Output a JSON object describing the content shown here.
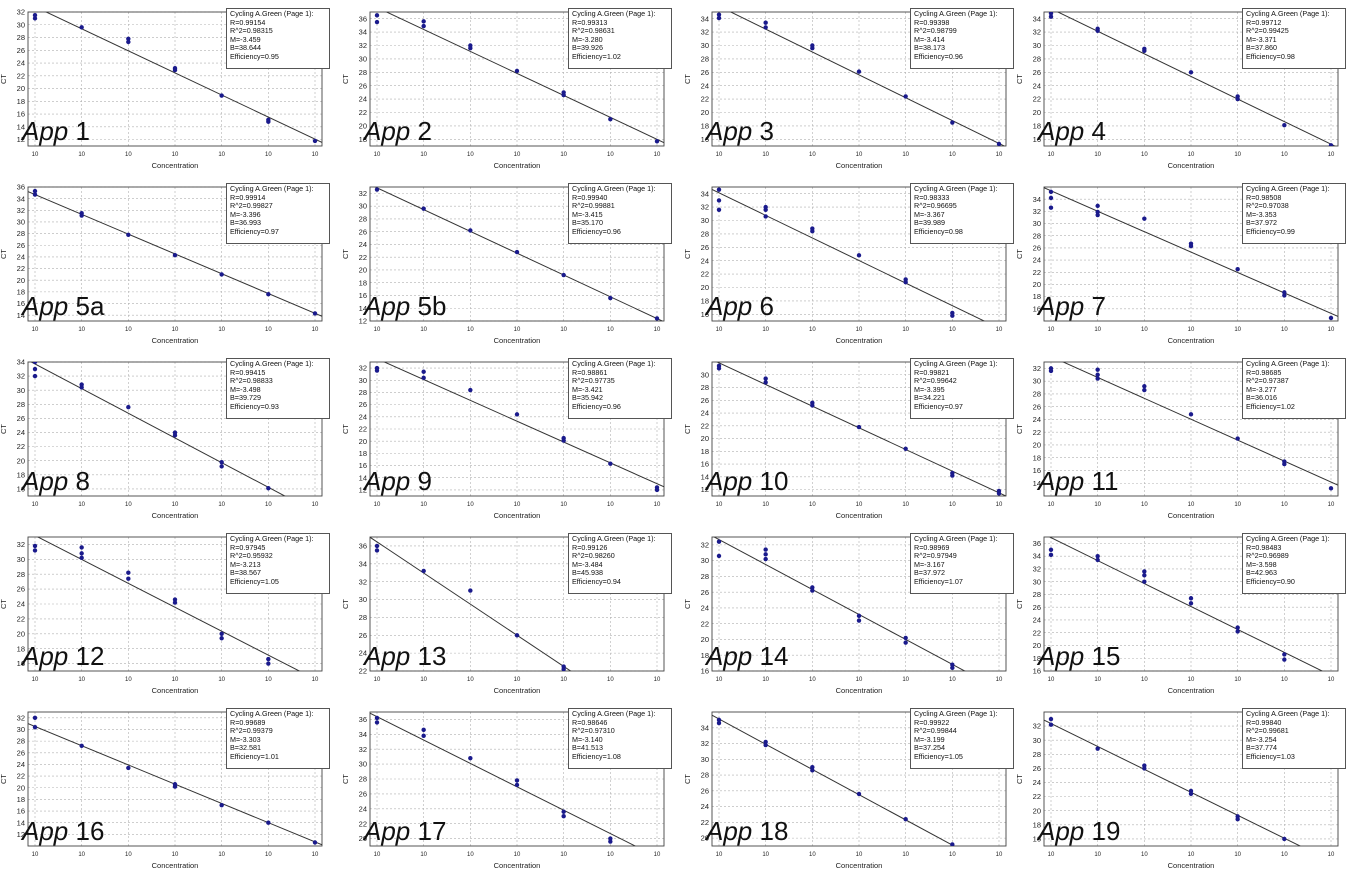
{
  "axis": {
    "xlabel": "Concentration",
    "ylabel": "CT",
    "xtick_label": "10"
  },
  "stats_labels": {
    "header": "Cycling A.Green (Page 1):",
    "r": "R=",
    "r2": "R^2=",
    "m": "M=",
    "b": "B=",
    "eff": "Efficiency="
  },
  "app_word": "App",
  "colors": {
    "points": "#1a1a8c",
    "line": "#333333",
    "grid": "#b0b0b0",
    "frame": "#444444"
  },
  "chart_data": [
    {
      "type": "scatter",
      "app": "1",
      "r": "0.99154",
      "r2": "0.98315",
      "m": "-3.459",
      "b": "38.644",
      "efficiency": "0.95",
      "ylim": [
        11,
        32
      ],
      "yticks": [
        12,
        14,
        16,
        18,
        20,
        22,
        24,
        26,
        28,
        30,
        32
      ],
      "points": [
        [
          0,
          31.5
        ],
        [
          0,
          31
        ],
        [
          1,
          29.6
        ],
        [
          2,
          27.8
        ],
        [
          2,
          27.3
        ],
        [
          3,
          23.2
        ],
        [
          3,
          22.9
        ],
        [
          4,
          18.9
        ],
        [
          5,
          15.1
        ],
        [
          5,
          14.8
        ],
        [
          6,
          11.8
        ]
      ]
    },
    {
      "type": "scatter",
      "app": "2",
      "r": "0.99313",
      "r2": "0.98631",
      "m": "-3.280",
      "b": "39.926",
      "efficiency": "1.02",
      "ylim": [
        17,
        37
      ],
      "yticks": [
        18,
        20,
        22,
        24,
        26,
        28,
        30,
        32,
        34,
        36
      ],
      "points": [
        [
          0,
          36.5
        ],
        [
          0,
          35.5
        ],
        [
          1,
          35.6
        ],
        [
          1,
          34.9
        ],
        [
          2,
          32
        ],
        [
          2,
          31.6
        ],
        [
          3,
          28.2
        ],
        [
          4,
          25
        ],
        [
          4,
          24.6
        ],
        [
          5,
          21
        ],
        [
          6,
          17.7
        ]
      ]
    },
    {
      "type": "scatter",
      "app": "3",
      "r": "0.99398",
      "r2": "0.98799",
      "m": "-3.414",
      "b": "38.173",
      "efficiency": "0.96",
      "ylim": [
        15,
        35
      ],
      "yticks": [
        16,
        18,
        20,
        22,
        24,
        26,
        28,
        30,
        32,
        34
      ],
      "points": [
        [
          0,
          34.6
        ],
        [
          0,
          34.1
        ],
        [
          1,
          33.4
        ],
        [
          1,
          32.7
        ],
        [
          2,
          30
        ],
        [
          2,
          29.6
        ],
        [
          3,
          26.1
        ],
        [
          4,
          22.4
        ],
        [
          5,
          18.5
        ],
        [
          6,
          15.3
        ]
      ]
    },
    {
      "type": "scatter",
      "app": "4",
      "r": "0.99712",
      "r2": "0.99425",
      "m": "-3.371",
      "b": "37.860",
      "efficiency": "0.98",
      "ylim": [
        15,
        35
      ],
      "yticks": [
        16,
        18,
        20,
        22,
        24,
        26,
        28,
        30,
        32,
        34
      ],
      "points": [
        [
          0,
          34.8
        ],
        [
          0,
          34.3
        ],
        [
          1,
          32.5
        ],
        [
          1,
          32.2
        ],
        [
          2,
          29.5
        ],
        [
          2,
          29.2
        ],
        [
          3,
          26
        ],
        [
          4,
          22.4
        ],
        [
          4,
          22
        ],
        [
          5,
          18.1
        ],
        [
          6,
          15.1
        ]
      ]
    },
    {
      "type": "scatter",
      "app": "5a",
      "r": "0.99914",
      "r2": "0.99827",
      "m": "-3.396",
      "b": "36.993",
      "efficiency": "0.97",
      "ylim": [
        13,
        36
      ],
      "yticks": [
        14,
        16,
        18,
        20,
        22,
        24,
        26,
        28,
        30,
        32,
        34,
        36
      ],
      "points": [
        [
          0,
          35.3
        ],
        [
          0,
          34.7
        ],
        [
          1,
          31.5
        ],
        [
          1,
          31.1
        ],
        [
          2,
          27.8
        ],
        [
          3,
          24.3
        ],
        [
          4,
          21
        ],
        [
          5,
          17.6
        ],
        [
          6,
          14.3
        ]
      ]
    },
    {
      "type": "scatter",
      "app": "5b",
      "r": "0.99940",
      "r2": "0.99881",
      "m": "-3.415",
      "b": "35.170",
      "efficiency": "0.96",
      "ylim": [
        12,
        33
      ],
      "yticks": [
        12,
        14,
        16,
        18,
        20,
        22,
        24,
        26,
        28,
        30,
        32
      ],
      "points": [
        [
          0,
          32.6
        ],
        [
          1,
          29.6
        ],
        [
          2,
          26.2
        ],
        [
          3,
          22.8
        ],
        [
          4,
          19.2
        ],
        [
          5,
          15.6
        ],
        [
          6,
          12.4
        ]
      ]
    },
    {
      "type": "scatter",
      "app": "6",
      "r": "0.98333",
      "r2": "0.96695",
      "m": "-3.367",
      "b": "39.989",
      "efficiency": "0.98",
      "ylim": [
        15,
        35
      ],
      "yticks": [
        16,
        18,
        20,
        22,
        24,
        26,
        28,
        30,
        32,
        34
      ],
      "points": [
        [
          0,
          34.6
        ],
        [
          0,
          33
        ],
        [
          0,
          31.6
        ],
        [
          1,
          32
        ],
        [
          1,
          31.6
        ],
        [
          1,
          30.6
        ],
        [
          2,
          28.8
        ],
        [
          2,
          28.4
        ],
        [
          3,
          24.8
        ],
        [
          4,
          21.2
        ],
        [
          4,
          20.8
        ],
        [
          5,
          16.2
        ],
        [
          5,
          15.8
        ]
      ]
    },
    {
      "type": "scatter",
      "app": "7",
      "r": "0.98508",
      "r2": "0.97038",
      "m": "-3.353",
      "b": "37.972",
      "efficiency": "0.99",
      "ylim": [
        14,
        36
      ],
      "yticks": [
        16,
        18,
        20,
        22,
        24,
        26,
        28,
        30,
        32,
        34
      ],
      "points": [
        [
          0,
          35.2
        ],
        [
          0,
          34.2
        ],
        [
          0,
          32.6
        ],
        [
          1,
          32.9
        ],
        [
          1,
          31.9
        ],
        [
          1,
          31.4
        ],
        [
          2,
          30.8
        ],
        [
          3,
          26.7
        ],
        [
          3,
          26.3
        ],
        [
          4,
          22.5
        ],
        [
          5,
          18.7
        ],
        [
          5,
          18.2
        ],
        [
          6,
          14.5
        ]
      ]
    },
    {
      "type": "scatter",
      "app": "8",
      "r": "0.99415",
      "r2": "0.98833",
      "m": "-3.498",
      "b": "39.729",
      "efficiency": "0.93",
      "ylim": [
        15,
        34
      ],
      "yticks": [
        16,
        18,
        20,
        22,
        24,
        26,
        28,
        30,
        32,
        34
      ],
      "points": [
        [
          0,
          34
        ],
        [
          0,
          33
        ],
        [
          0,
          32
        ],
        [
          1,
          30.8
        ],
        [
          1,
          30.4
        ],
        [
          2,
          27.6
        ],
        [
          3,
          24
        ],
        [
          3,
          23.6
        ],
        [
          4,
          19.8
        ],
        [
          4,
          19.2
        ],
        [
          5,
          16.1
        ]
      ]
    },
    {
      "type": "scatter",
      "app": "9",
      "r": "0.98861",
      "r2": "0.97735",
      "m": "-3.421",
      "b": "35.942",
      "efficiency": "0.96",
      "ylim": [
        11,
        33
      ],
      "yticks": [
        12,
        14,
        16,
        18,
        20,
        22,
        24,
        26,
        28,
        30,
        32
      ],
      "points": [
        [
          0,
          32
        ],
        [
          0,
          31.6
        ],
        [
          1,
          31.4
        ],
        [
          1,
          30.4
        ],
        [
          2,
          28.4
        ],
        [
          3,
          24.4
        ],
        [
          4,
          20.5
        ],
        [
          4,
          20.1
        ],
        [
          5,
          16.3
        ],
        [
          6,
          12.4
        ],
        [
          6,
          12
        ]
      ]
    },
    {
      "type": "scatter",
      "app": "10",
      "r": "0.99821",
      "r2": "0.99642",
      "m": "-3.395",
      "b": "34.221",
      "efficiency": "0.97",
      "ylim": [
        11,
        32
      ],
      "yticks": [
        12,
        14,
        16,
        18,
        20,
        22,
        24,
        26,
        28,
        30
      ],
      "points": [
        [
          0,
          31.4
        ],
        [
          0,
          31
        ],
        [
          1,
          29.4
        ],
        [
          1,
          28.8
        ],
        [
          2,
          25.6
        ],
        [
          2,
          25.2
        ],
        [
          3,
          21.8
        ],
        [
          4,
          18.4
        ],
        [
          5,
          14.6
        ],
        [
          5,
          14.2
        ],
        [
          6,
          11.8
        ],
        [
          6,
          11.4
        ]
      ]
    },
    {
      "type": "scatter",
      "app": "11",
      "r": "0.98685",
      "r2": "0.97387",
      "m": "-3.277",
      "b": "36.016",
      "efficiency": "1.02",
      "ylim": [
        12,
        33
      ],
      "yticks": [
        14,
        16,
        18,
        20,
        22,
        24,
        26,
        28,
        30,
        32
      ],
      "points": [
        [
          0,
          32
        ],
        [
          0,
          31.6
        ],
        [
          1,
          31.8
        ],
        [
          1,
          31
        ],
        [
          1,
          30.4
        ],
        [
          2,
          29.2
        ],
        [
          2,
          28.6
        ],
        [
          3,
          24.8
        ],
        [
          4,
          21
        ],
        [
          5,
          17.4
        ],
        [
          5,
          17
        ],
        [
          6,
          13.2
        ]
      ]
    },
    {
      "type": "scatter",
      "app": "12",
      "r": "0.97945",
      "r2": "0.95932",
      "m": "-3.213",
      "b": "38.567",
      "efficiency": "1.05",
      "ylim": [
        15,
        33
      ],
      "yticks": [
        16,
        18,
        20,
        22,
        24,
        26,
        28,
        30,
        32
      ],
      "points": [
        [
          0,
          31.8
        ],
        [
          0,
          31.2
        ],
        [
          1,
          31.6
        ],
        [
          1,
          30.8
        ],
        [
          1,
          30.2
        ],
        [
          2,
          28.2
        ],
        [
          2,
          27.4
        ],
        [
          3,
          24.6
        ],
        [
          3,
          24.2
        ],
        [
          4,
          20
        ],
        [
          4,
          19.4
        ],
        [
          5,
          16.6
        ],
        [
          5,
          16
        ]
      ]
    },
    {
      "type": "scatter",
      "app": "13",
      "r": "0.99126",
      "r2": "0.98260",
      "m": "-3.484",
      "b": "45.938",
      "efficiency": "0.94",
      "ylim": [
        22,
        37
      ],
      "yticks": [
        22,
        24,
        26,
        28,
        30,
        32,
        34,
        36
      ],
      "points": [
        [
          0,
          36
        ],
        [
          0,
          35.5
        ],
        [
          1,
          33.2
        ],
        [
          2,
          31
        ],
        [
          3,
          26
        ],
        [
          4,
          22.5
        ],
        [
          4,
          22.2
        ]
      ]
    },
    {
      "type": "scatter",
      "app": "14",
      "r": "0.98969",
      "r2": "0.97949",
      "m": "-3.167",
      "b": "37.972",
      "efficiency": "1.07",
      "ylim": [
        16,
        33
      ],
      "yticks": [
        16,
        18,
        20,
        22,
        24,
        26,
        28,
        30,
        32
      ],
      "points": [
        [
          0,
          32.4
        ],
        [
          0,
          30.6
        ],
        [
          1,
          31.4
        ],
        [
          1,
          30.8
        ],
        [
          1,
          30.2
        ],
        [
          2,
          26.6
        ],
        [
          2,
          26.2
        ],
        [
          3,
          23
        ],
        [
          3,
          22.4
        ],
        [
          4,
          20.2
        ],
        [
          4,
          19.6
        ],
        [
          5,
          16.8
        ],
        [
          5,
          16.4
        ]
      ]
    },
    {
      "type": "scatter",
      "app": "15",
      "r": "0.98483",
      "r2": "0.96989",
      "m": "-3.598",
      "b": "42.963",
      "efficiency": "0.90",
      "ylim": [
        16,
        37
      ],
      "yticks": [
        16,
        18,
        20,
        22,
        24,
        26,
        28,
        30,
        32,
        34,
        36
      ],
      "points": [
        [
          0,
          35
        ],
        [
          0,
          34.2
        ],
        [
          1,
          34
        ],
        [
          1,
          33.4
        ],
        [
          2,
          31.6
        ],
        [
          2,
          31
        ],
        [
          2,
          30
        ],
        [
          3,
          27.4
        ],
        [
          3,
          26.6
        ],
        [
          4,
          22.8
        ],
        [
          4,
          22.2
        ],
        [
          5,
          18.6
        ],
        [
          5,
          17.8
        ]
      ]
    },
    {
      "type": "scatter",
      "app": "16",
      "r": "0.99689",
      "r2": "0.99379",
      "m": "-3.303",
      "b": "32.581",
      "efficiency": "1.01",
      "ylim": [
        10,
        33
      ],
      "yticks": [
        12,
        14,
        16,
        18,
        20,
        22,
        24,
        26,
        28,
        30,
        32
      ],
      "points": [
        [
          0,
          32
        ],
        [
          0,
          30.4
        ],
        [
          1,
          27.2
        ],
        [
          2,
          23.4
        ],
        [
          3,
          20.6
        ],
        [
          3,
          20.2
        ],
        [
          4,
          17
        ],
        [
          5,
          14
        ],
        [
          6,
          10.6
        ]
      ]
    },
    {
      "type": "scatter",
      "app": "17",
      "r": "0.98646",
      "r2": "0.97310",
      "m": "-3.140",
      "b": "41.513",
      "efficiency": "1.08",
      "ylim": [
        19,
        37
      ],
      "yticks": [
        20,
        22,
        24,
        26,
        28,
        30,
        32,
        34,
        36
      ],
      "points": [
        [
          0,
          36.2
        ],
        [
          0,
          35.6
        ],
        [
          1,
          34.6
        ],
        [
          1,
          33.8
        ],
        [
          2,
          30.8
        ],
        [
          3,
          27.8
        ],
        [
          3,
          27.2
        ],
        [
          4,
          23.6
        ],
        [
          4,
          23
        ],
        [
          5,
          20
        ],
        [
          5,
          19.6
        ]
      ]
    },
    {
      "type": "scatter",
      "app": "18",
      "r": "0.99922",
      "r2": "0.99844",
      "m": "-3.199",
      "b": "37.254",
      "efficiency": "1.05",
      "ylim": [
        19,
        36
      ],
      "yticks": [
        20,
        22,
        24,
        26,
        28,
        30,
        32,
        34
      ],
      "points": [
        [
          0,
          35
        ],
        [
          0,
          34.6
        ],
        [
          1,
          32.2
        ],
        [
          1,
          31.8
        ],
        [
          2,
          29
        ],
        [
          2,
          28.6
        ],
        [
          3,
          25.6
        ],
        [
          4,
          22.4
        ],
        [
          5,
          19.2
        ]
      ]
    },
    {
      "type": "scatter",
      "app": "19",
      "r": "0.99840",
      "r2": "0.99681",
      "m": "-3.254",
      "b": "37.774",
      "efficiency": "1.03",
      "ylim": [
        15,
        34
      ],
      "yticks": [
        16,
        18,
        20,
        22,
        24,
        26,
        28,
        30,
        32
      ],
      "points": [
        [
          0,
          33
        ],
        [
          0,
          32.2
        ],
        [
          1,
          28.8
        ],
        [
          2,
          26.4
        ],
        [
          2,
          26
        ],
        [
          3,
          22.8
        ],
        [
          3,
          22.4
        ],
        [
          4,
          19.2
        ],
        [
          4,
          18.8
        ],
        [
          5,
          16
        ]
      ]
    }
  ]
}
